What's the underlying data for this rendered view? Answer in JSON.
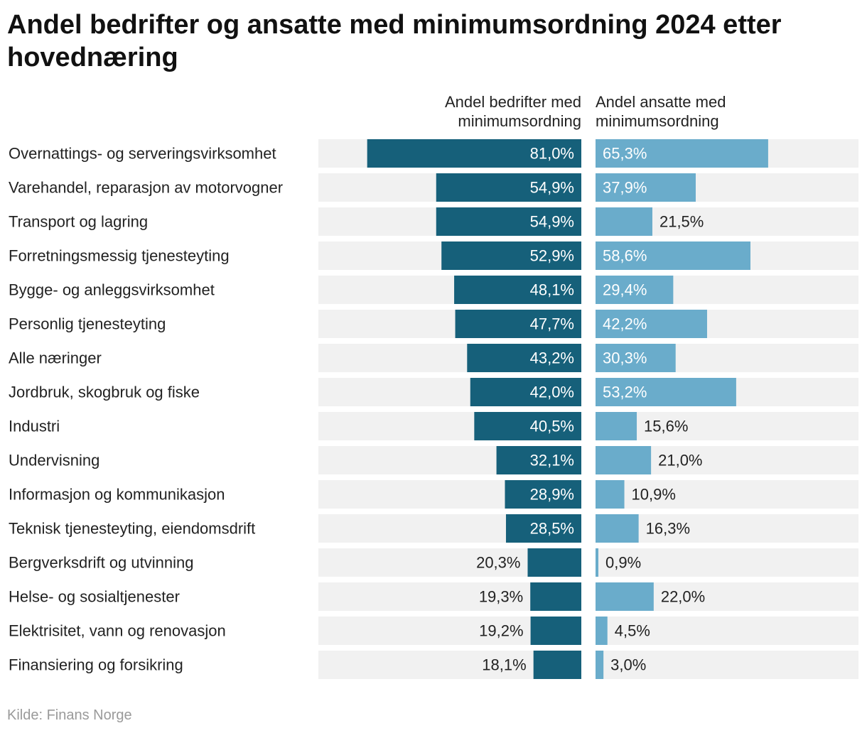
{
  "title": "Andel bedrifter og ansatte med minimumsordning 2024 etter hovednæring",
  "source": "Kilde: Finans Norge",
  "colors": {
    "background_track": "#f1f1f1",
    "companies_bar": "#16607a",
    "employees_bar": "#6aaccb",
    "label_text": "#222222",
    "value_text_on_bar": "#ffffff",
    "value_text_outside": "#222222",
    "source_text": "#9a9a9a"
  },
  "chart_data": {
    "type": "bar",
    "orientation": "horizontal",
    "title": "Andel bedrifter og ansatte med minimumsordning 2024 etter hovednæring",
    "unit": "%",
    "xlim": [
      0,
      100
    ],
    "categories": [
      "Overnattings- og serveringsvirksomhet",
      "Varehandel, reparasjon av motorvogner",
      "Transport og lagring",
      "Forretningsmessig tjenesteyting",
      "Bygge- og anleggsvirksomhet",
      "Personlig tjenesteyting",
      "Alle næringer",
      "Jordbruk, skogbruk og fiske",
      "Industri",
      "Undervisning",
      "Informasjon og kommunikasjon",
      "Teknisk tjenesteyting, eiendomsdrift",
      "Bergverksdrift og utvinning",
      "Helse- og sosialtjenester",
      "Elektrisitet, vann og renovasjon",
      "Finansiering og forsikring"
    ],
    "series": [
      {
        "name": "Andel bedrifter med minimumsordning",
        "direction": "leftward",
        "values": [
          81.0,
          54.9,
          54.9,
          52.9,
          48.1,
          47.7,
          43.2,
          42.0,
          40.5,
          32.1,
          28.9,
          28.5,
          20.3,
          19.3,
          19.2,
          18.1
        ],
        "labels": [
          "81,0%",
          "54,9%",
          "54,9%",
          "52,9%",
          "48,1%",
          "47,7%",
          "43,2%",
          "42,0%",
          "40,5%",
          "32,1%",
          "28,9%",
          "28,5%",
          "20,3%",
          "19,3%",
          "19,2%",
          "18,1%"
        ]
      },
      {
        "name": "Andel ansatte med minimumsordning",
        "direction": "rightward",
        "values": [
          65.3,
          37.9,
          21.5,
          58.6,
          29.4,
          42.2,
          30.3,
          53.2,
          15.6,
          21.0,
          10.9,
          16.3,
          0.9,
          22.0,
          4.5,
          3.0
        ],
        "labels": [
          "65,3%",
          "37,9%",
          "21,5%",
          "58,6%",
          "29,4%",
          "42,2%",
          "30,3%",
          "53,2%",
          "15,6%",
          "21,0%",
          "10,9%",
          "16,3%",
          "0,9%",
          "22,0%",
          "4,5%",
          "3,0%"
        ]
      }
    ],
    "column_headers": [
      [
        "Andel bedrifter med",
        "minimumsordning"
      ],
      [
        "Andel ansatte med",
        "minimumsordning"
      ]
    ]
  }
}
